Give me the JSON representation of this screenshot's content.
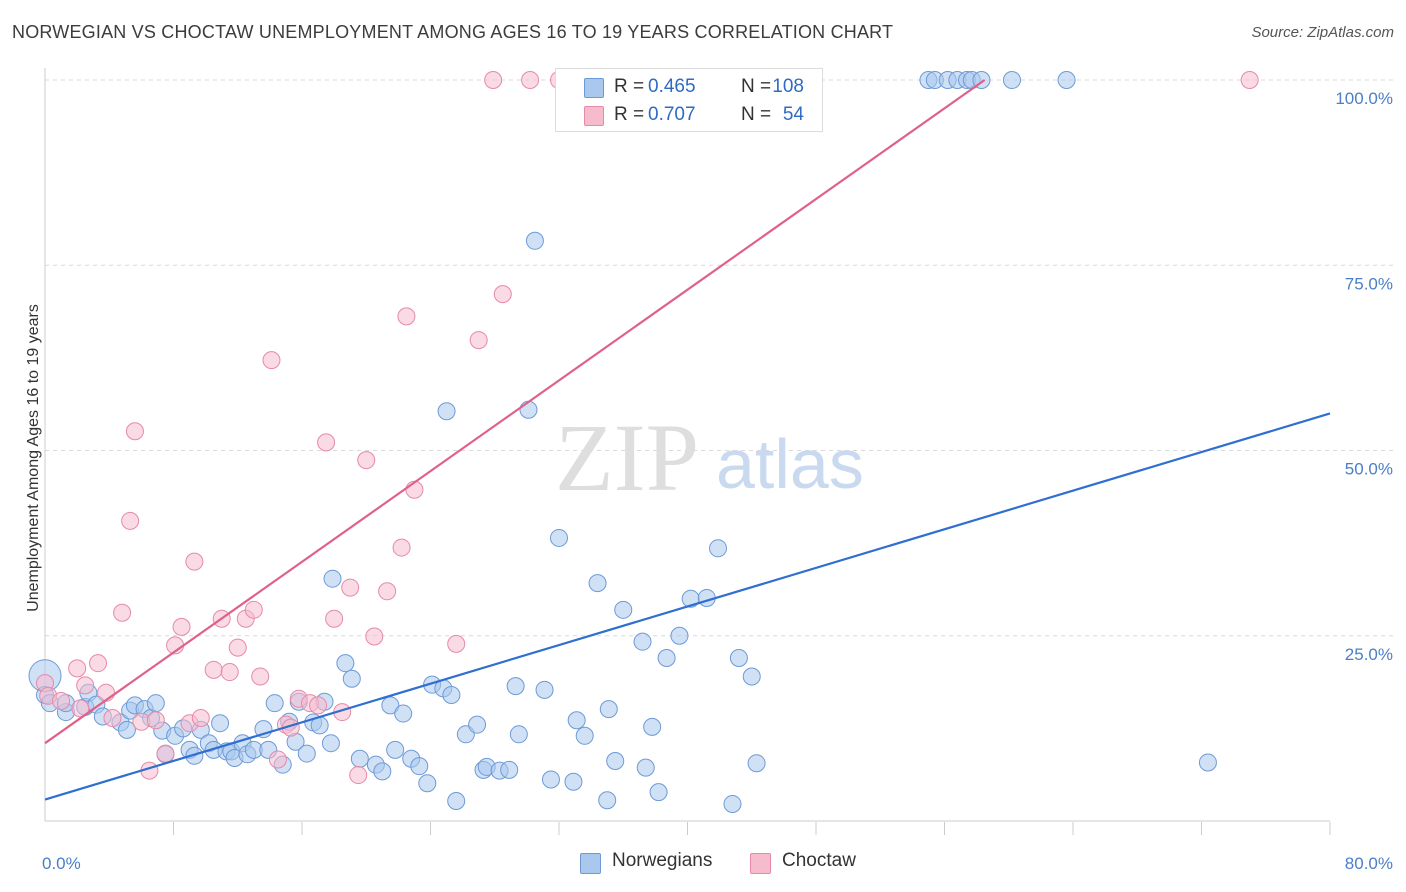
{
  "title": "NORWEGIAN VS CHOCTAW UNEMPLOYMENT AMONG AGES 16 TO 19 YEARS CORRELATION CHART",
  "source": "Source: ZipAtlas.com",
  "watermark": {
    "zip": "ZIP",
    "atlas": "atlas"
  },
  "colors": {
    "blue_fill": "#aac8ee",
    "blue_stroke": "#6d9ad6",
    "blue_line": "#2f6fd0",
    "pink_fill": "#f6bccd",
    "pink_stroke": "#e68aa8",
    "pink_line": "#e0608c",
    "accent_text": "#2f6bc4",
    "grid": "#d9d9d9"
  },
  "legend": {
    "rows": [
      {
        "r_label": "R =",
        "r_value": "0.465",
        "n_label": "N =",
        "n_value": "108",
        "color": "#aac8ee"
      },
      {
        "r_label": "R =",
        "r_value": "0.707",
        "n_label": "N =",
        "n_value": "54",
        "color": "#f6bccd"
      }
    ]
  },
  "bottom_legend": [
    {
      "label": "Norwegians",
      "color": "#aac8ee"
    },
    {
      "label": "Choctaw",
      "color": "#f6bccd"
    }
  ],
  "chart_data": {
    "type": "scatter",
    "title": "NORWEGIAN VS CHOCTAW UNEMPLOYMENT AMONG AGES 16 TO 19 YEARS CORRELATION CHART",
    "xlabel": "",
    "ylabel": "Unemployment Among Ages 16 to 19 years",
    "xlim": [
      0,
      80
    ],
    "ylim": [
      0,
      100
    ],
    "x_tick_labels": [
      "0.0%",
      "80.0%"
    ],
    "y_tick_labels": [
      "100.0%",
      "75.0%",
      "50.0%",
      "25.0%"
    ],
    "y_tick_values": [
      100,
      75,
      50,
      25
    ],
    "grid": true,
    "legend_position": "top-center",
    "series": [
      {
        "name": "Norwegians",
        "R": 0.465,
        "N": 108,
        "trendline": [
          [
            0,
            2.9
          ],
          [
            80,
            55.0
          ]
        ],
        "points": [
          [
            0.0,
            19.6
          ],
          [
            0.0,
            17.0
          ],
          [
            0.3,
            15.9
          ],
          [
            1.3,
            14.7
          ],
          [
            1.3,
            15.9
          ],
          [
            2.5,
            15.4
          ],
          [
            2.7,
            17.3
          ],
          [
            3.2,
            15.7
          ],
          [
            3.6,
            14.1
          ],
          [
            4.7,
            13.3
          ],
          [
            5.1,
            12.3
          ],
          [
            5.3,
            14.9
          ],
          [
            5.6,
            15.6
          ],
          [
            6.2,
            15.1
          ],
          [
            6.6,
            13.9
          ],
          [
            6.9,
            15.9
          ],
          [
            7.3,
            12.2
          ],
          [
            7.5,
            9.0
          ],
          [
            8.1,
            11.5
          ],
          [
            8.6,
            12.5
          ],
          [
            9.0,
            9.6
          ],
          [
            9.3,
            8.8
          ],
          [
            9.7,
            12.3
          ],
          [
            10.2,
            10.5
          ],
          [
            10.5,
            9.6
          ],
          [
            10.9,
            13.2
          ],
          [
            11.3,
            9.4
          ],
          [
            11.6,
            9.4
          ],
          [
            11.8,
            8.5
          ],
          [
            12.3,
            10.5
          ],
          [
            12.6,
            9.0
          ],
          [
            13.0,
            9.6
          ],
          [
            13.6,
            12.4
          ],
          [
            13.9,
            9.6
          ],
          [
            14.3,
            15.9
          ],
          [
            14.8,
            7.6
          ],
          [
            15.2,
            13.4
          ],
          [
            15.6,
            10.7
          ],
          [
            15.8,
            16.1
          ],
          [
            16.3,
            9.1
          ],
          [
            16.7,
            13.3
          ],
          [
            17.1,
            12.9
          ],
          [
            17.4,
            16.1
          ],
          [
            17.8,
            10.5
          ],
          [
            17.9,
            32.7
          ],
          [
            18.7,
            21.3
          ],
          [
            19.1,
            19.2
          ],
          [
            19.6,
            8.4
          ],
          [
            20.6,
            7.6
          ],
          [
            21.0,
            6.7
          ],
          [
            21.5,
            15.6
          ],
          [
            21.8,
            9.6
          ],
          [
            22.3,
            14.5
          ],
          [
            22.8,
            8.4
          ],
          [
            23.3,
            7.4
          ],
          [
            23.8,
            5.1
          ],
          [
            24.1,
            18.4
          ],
          [
            24.8,
            17.9
          ],
          [
            25.3,
            17.0
          ],
          [
            25.6,
            2.7
          ],
          [
            25.0,
            55.3
          ],
          [
            26.2,
            11.7
          ],
          [
            26.9,
            13.0
          ],
          [
            27.3,
            6.9
          ],
          [
            27.5,
            7.3
          ],
          [
            28.3,
            6.8
          ],
          [
            28.9,
            6.9
          ],
          [
            29.3,
            18.2
          ],
          [
            29.5,
            11.7
          ],
          [
            30.1,
            55.5
          ],
          [
            30.5,
            78.3
          ],
          [
            31.1,
            17.7
          ],
          [
            31.5,
            5.6
          ],
          [
            32.0,
            38.2
          ],
          [
            32.9,
            5.3
          ],
          [
            33.1,
            13.6
          ],
          [
            33.6,
            11.5
          ],
          [
            34.4,
            32.1
          ],
          [
            35.0,
            2.8
          ],
          [
            35.1,
            15.1
          ],
          [
            35.5,
            8.1
          ],
          [
            36.0,
            28.5
          ],
          [
            37.2,
            24.2
          ],
          [
            37.4,
            7.2
          ],
          [
            37.8,
            12.7
          ],
          [
            38.2,
            3.9
          ],
          [
            38.7,
            22.0
          ],
          [
            39.5,
            25.0
          ],
          [
            40.2,
            30.0
          ],
          [
            41.2,
            30.1
          ],
          [
            41.9,
            36.8
          ],
          [
            42.8,
            2.3
          ],
          [
            43.2,
            22.0
          ],
          [
            44.0,
            19.5
          ],
          [
            44.3,
            7.8
          ],
          [
            55.0,
            100.0
          ],
          [
            55.4,
            100.0
          ],
          [
            56.2,
            100.0
          ],
          [
            56.8,
            100.0
          ],
          [
            57.4,
            100.0
          ],
          [
            57.7,
            100.0
          ],
          [
            58.3,
            100.0
          ],
          [
            63.6,
            100.0
          ],
          [
            72.4,
            7.9
          ],
          [
            37.0,
            100.0
          ],
          [
            37.8,
            100.0
          ],
          [
            40.5,
            100.0
          ],
          [
            60.2,
            100.0
          ]
        ]
      },
      {
        "name": "Choctaw",
        "R": 0.707,
        "N": 54,
        "trendline": [
          [
            0,
            10.5
          ],
          [
            58.5,
            100.0
          ]
        ],
        "points": [
          [
            0.0,
            18.6
          ],
          [
            0.2,
            16.9
          ],
          [
            1.0,
            16.2
          ],
          [
            2.0,
            20.6
          ],
          [
            2.2,
            15.2
          ],
          [
            2.5,
            18.3
          ],
          [
            3.3,
            21.3
          ],
          [
            3.8,
            17.3
          ],
          [
            4.2,
            13.9
          ],
          [
            4.8,
            28.1
          ],
          [
            5.3,
            40.5
          ],
          [
            5.6,
            52.6
          ],
          [
            6.0,
            13.4
          ],
          [
            6.5,
            6.8
          ],
          [
            6.9,
            13.6
          ],
          [
            7.5,
            9.1
          ],
          [
            8.1,
            23.7
          ],
          [
            8.5,
            26.2
          ],
          [
            9.0,
            13.2
          ],
          [
            9.3,
            35.0
          ],
          [
            9.7,
            13.9
          ],
          [
            10.5,
            20.4
          ],
          [
            11.0,
            27.3
          ],
          [
            11.5,
            20.1
          ],
          [
            12.0,
            23.4
          ],
          [
            12.5,
            27.3
          ],
          [
            13.0,
            28.5
          ],
          [
            13.4,
            19.5
          ],
          [
            14.1,
            62.2
          ],
          [
            14.5,
            8.3
          ],
          [
            15.0,
            13.0
          ],
          [
            15.3,
            12.6
          ],
          [
            15.8,
            16.5
          ],
          [
            16.5,
            15.9
          ],
          [
            17.0,
            15.6
          ],
          [
            17.5,
            51.1
          ],
          [
            18.0,
            27.3
          ],
          [
            18.5,
            14.7
          ],
          [
            19.0,
            31.5
          ],
          [
            19.5,
            6.2
          ],
          [
            20.0,
            48.7
          ],
          [
            20.5,
            24.9
          ],
          [
            21.3,
            31.0
          ],
          [
            22.2,
            36.9
          ],
          [
            22.5,
            68.1
          ],
          [
            23.0,
            44.7
          ],
          [
            25.6,
            23.9
          ],
          [
            27.0,
            64.9
          ],
          [
            28.5,
            71.1
          ],
          [
            27.9,
            100.0
          ],
          [
            30.2,
            100.0
          ],
          [
            32.0,
            100.0
          ],
          [
            45.0,
            100.0
          ],
          [
            75.0,
            100.0
          ]
        ]
      }
    ]
  }
}
